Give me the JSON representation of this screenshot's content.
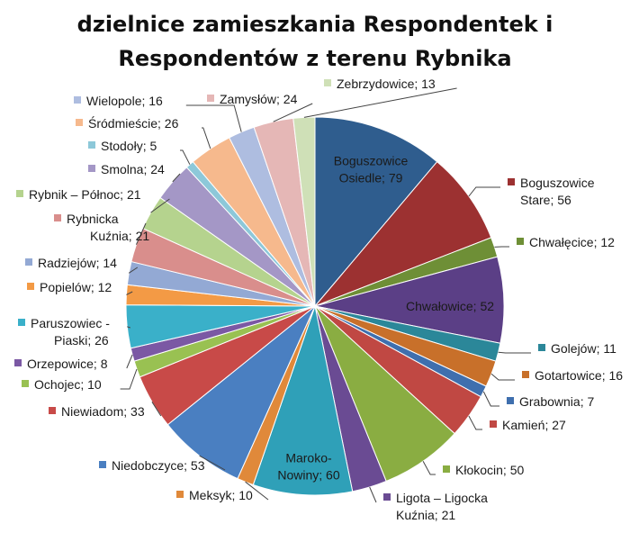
{
  "chart_data": {
    "type": "pie",
    "title_lines": [
      "dzielnice zamieszkania Respondentek i",
      "Respondentów z terenu Rybnika"
    ],
    "slices": [
      {
        "name": "Boguszowice Osiedle",
        "value": 79,
        "label_lines": [
          "Boguszowice",
          "Osiedle; 79"
        ],
        "color": "#2f5d8e"
      },
      {
        "name": "Boguszowice Stare",
        "value": 56,
        "label_lines": [
          "Boguszowice",
          "Stare; 56"
        ],
        "color": "#9c3131"
      },
      {
        "name": "Chwałęcice",
        "value": 12,
        "label_lines": [
          "Chwałęcice; 12"
        ],
        "color": "#6e8f36"
      },
      {
        "name": "Chwałowice",
        "value": 52,
        "label_lines": [
          "Chwałowice; 52"
        ],
        "color": "#5b3f86"
      },
      {
        "name": "Golejów",
        "value": 11,
        "label_lines": [
          "Golejów; 11"
        ],
        "color": "#2b8799"
      },
      {
        "name": "Gotartowice",
        "value": 16,
        "label_lines": [
          "Gotartowice; 16"
        ],
        "color": "#c8702a"
      },
      {
        "name": "Grabownia",
        "value": 7,
        "label_lines": [
          "Grabownia; 7"
        ],
        "color": "#3f6fae"
      },
      {
        "name": "Kamień",
        "value": 27,
        "label_lines": [
          "Kamień; 27"
        ],
        "color": "#c04843"
      },
      {
        "name": "Kłokocin",
        "value": 50,
        "label_lines": [
          "Kłokocin; 50"
        ],
        "color": "#8aad42"
      },
      {
        "name": "Ligota – Ligocka Kuźnia",
        "value": 21,
        "label_lines": [
          "Ligota – Ligocka",
          "Kuźnia; 21"
        ],
        "color": "#6a4b93"
      },
      {
        "name": "Maroko-Nowiny",
        "value": 60,
        "label_lines": [
          "Maroko-",
          "Nowiny; 60"
        ],
        "color": "#2fa0b8"
      },
      {
        "name": "Meksyk",
        "value": 10,
        "label_lines": [
          "Meksyk; 10"
        ],
        "color": "#e0893a"
      },
      {
        "name": "Niedobczyce",
        "value": 53,
        "label_lines": [
          "Niedobczyce; 53"
        ],
        "color": "#4a7fc1"
      },
      {
        "name": "Niewiadom",
        "value": 33,
        "label_lines": [
          "Niewiadom; 33"
        ],
        "color": "#c84a48"
      },
      {
        "name": "Ochojec",
        "value": 10,
        "label_lines": [
          "Ochojec; 10"
        ],
        "color": "#99c152"
      },
      {
        "name": "Orzepowice",
        "value": 8,
        "label_lines": [
          "Orzepowice; 8"
        ],
        "color": "#7b58a4"
      },
      {
        "name": "Paruszowiec - Piaski",
        "value": 26,
        "label_lines": [
          "Paruszowiec -",
          "Piaski; 26"
        ],
        "color": "#3ab0c9"
      },
      {
        "name": "Popielów",
        "value": 12,
        "label_lines": [
          "Popielów; 12"
        ],
        "color": "#f39a45"
      },
      {
        "name": "Radziejów",
        "value": 14,
        "label_lines": [
          "Radziejów; 14"
        ],
        "color": "#93a9d4"
      },
      {
        "name": "Rybnicka Kuźnia",
        "value": 21,
        "label_lines": [
          "Rybnicka",
          "Kuźnia; 21"
        ],
        "color": "#d98e8c"
      },
      {
        "name": "Rybnik – Północ",
        "value": 21,
        "label_lines": [
          "Rybnik – Północ; 21"
        ],
        "color": "#b5d38e"
      },
      {
        "name": "Smolna",
        "value": 24,
        "label_lines": [
          "Smolna; 24"
        ],
        "color": "#a497c6"
      },
      {
        "name": "Stodoły",
        "value": 5,
        "label_lines": [
          "Stodoły; 5"
        ],
        "color": "#8dc8d9"
      },
      {
        "name": "Śródmieście",
        "value": 26,
        "label_lines": [
          "Śródmieście; 26"
        ],
        "color": "#f6b98d"
      },
      {
        "name": "Wielopole",
        "value": 16,
        "label_lines": [
          "Wielopole; 16"
        ],
        "color": "#aebde0"
      },
      {
        "name": "Zamysłów",
        "value": 24,
        "label_lines": [
          "Zamysłów; 24"
        ],
        "color": "#e5b7b6"
      },
      {
        "name": "Zebrzydowice",
        "value": 13,
        "label_lines": [
          "Zebrzydowice; 13"
        ],
        "color": "#cfe0b7"
      }
    ]
  }
}
